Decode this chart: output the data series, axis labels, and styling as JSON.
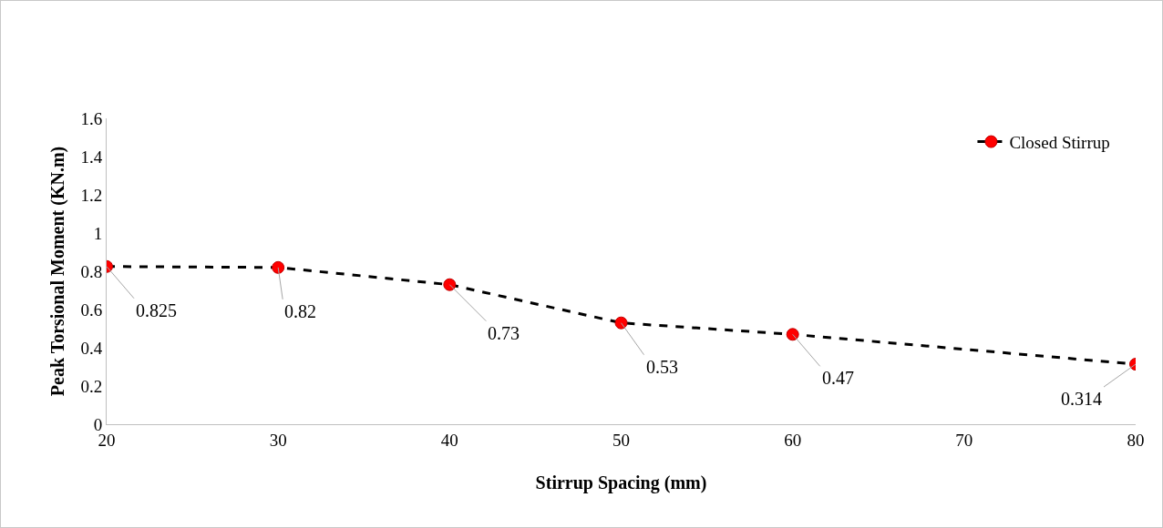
{
  "chart_data": {
    "type": "line",
    "xlabel": "Stirrup Spacing (mm)",
    "ylabel": "Peak Torsional Moment (KN.m)",
    "x": [
      20,
      30,
      40,
      50,
      60,
      80
    ],
    "series": [
      {
        "name": "Closed Stirrup",
        "color": "#ff0000",
        "values": [
          0.825,
          0.82,
          0.73,
          0.53,
          0.47,
          0.314
        ]
      }
    ],
    "xlim": [
      20,
      80
    ],
    "xticks": [
      20,
      30,
      40,
      50,
      60,
      70,
      80
    ],
    "ylim": [
      0,
      1.6
    ],
    "yticks": [
      0,
      0.2,
      0.4,
      0.6,
      0.8,
      1,
      1.2,
      1.4,
      1.6
    ],
    "grid": false,
    "legend": "top right",
    "marker": "circle",
    "line_style": "dashed",
    "data_labels": true
  }
}
